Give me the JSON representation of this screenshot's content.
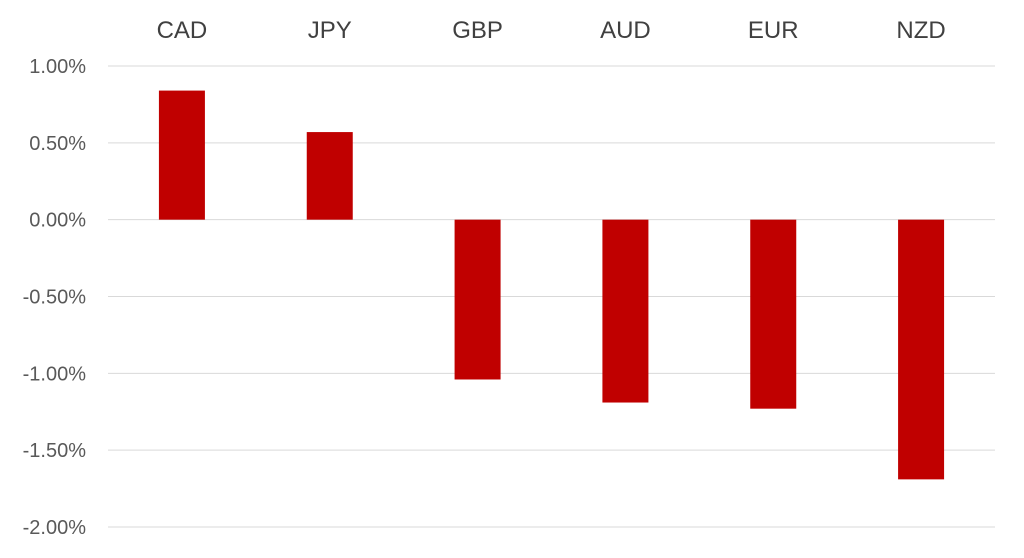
{
  "chart_data": {
    "type": "bar",
    "title": "",
    "xlabel": "",
    "ylabel": "",
    "categories": [
      "CAD",
      "JPY",
      "GBP",
      "AUD",
      "EUR",
      "NZD"
    ],
    "values": [
      0.84,
      0.57,
      -1.04,
      -1.19,
      -1.23,
      -1.69
    ],
    "ylim": [
      -2.0,
      1.0
    ],
    "yticks": [
      1.0,
      0.5,
      0.0,
      -0.5,
      -1.0,
      -1.5,
      -2.0
    ],
    "ytick_labels": [
      "1.00%",
      "0.50%",
      "0.00%",
      "-0.50%",
      "-1.00%",
      "-1.50%",
      "-2.00%"
    ],
    "category_axis_position": "top",
    "grid": true,
    "legend": "none",
    "colors": {
      "bar": "#c00000",
      "grid": "#d9d9d9"
    }
  }
}
